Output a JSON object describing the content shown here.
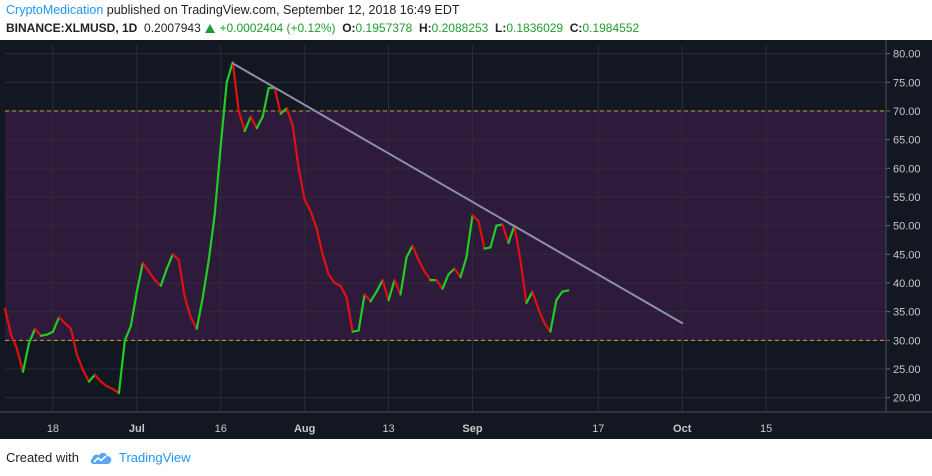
{
  "header": {
    "author": "CryptoMedication",
    "published_text": "published on TradingView.com, September 12, 2018 16:49 EDT",
    "symbol": "BINANCE:XLMUSD, 1D",
    "last": "0.2007943",
    "change": "+0.0002404 (+0.12%)",
    "o_label": "O:",
    "o_value": "0.1957378",
    "h_label": "H:",
    "h_value": "0.2088253",
    "l_label": "L:",
    "l_value": "0.1836029",
    "c_label": "C:",
    "c_value": "0.1984552"
  },
  "footer": {
    "created_with": "Created with",
    "brand": "TradingView",
    "logo_icon": "tradingview-cloud-icon"
  },
  "colors": {
    "background": "#131722",
    "grid": "#2a2e39",
    "band": "#2e1a3a",
    "band_line": "#c8a23a",
    "up": "#22cc22",
    "down": "#e01010",
    "trendline": "#8c90b0",
    "axis_text": "#c8c8c8"
  },
  "chart_data": {
    "type": "line",
    "title": "",
    "xlabel": "",
    "ylabel": "",
    "ylim": [
      17.5,
      81.5
    ],
    "y_ticks": [
      "80.00",
      "75.00",
      "70.00",
      "65.00",
      "60.00",
      "55.00",
      "50.00",
      "45.00",
      "40.00",
      "35.00",
      "30.00",
      "25.00",
      "20.00"
    ],
    "x_tick_labels": [
      "18",
      "Jul",
      "16",
      "Aug",
      "13",
      "Sep",
      "17",
      "Oct",
      "15"
    ],
    "x_tick_dates": [
      "2018-06-18",
      "2018-07-02",
      "2018-07-16",
      "2018-07-30",
      "2018-08-13",
      "2018-08-27",
      "2018-09-17",
      "2018-10-01",
      "2018-10-15"
    ],
    "xlim": [
      "2018-06-10",
      "2018-11-04"
    ],
    "grid": true,
    "band": {
      "upper": 70,
      "lower": 30
    },
    "series": [
      {
        "color_rule": "green when rising, red when falling",
        "x": [
          "2018-06-10",
          "2018-06-11",
          "2018-06-12",
          "2018-06-13",
          "2018-06-14",
          "2018-06-15",
          "2018-06-16",
          "2018-06-17",
          "2018-06-18",
          "2018-06-19",
          "2018-06-20",
          "2018-06-21",
          "2018-06-22",
          "2018-06-23",
          "2018-06-24",
          "2018-06-25",
          "2018-06-26",
          "2018-06-27",
          "2018-06-28",
          "2018-06-29",
          "2018-06-30",
          "2018-07-01",
          "2018-07-02",
          "2018-07-03",
          "2018-07-04",
          "2018-07-05",
          "2018-07-06",
          "2018-07-07",
          "2018-07-08",
          "2018-07-09",
          "2018-07-10",
          "2018-07-11",
          "2018-07-12",
          "2018-07-13",
          "2018-07-14",
          "2018-07-15",
          "2018-07-16",
          "2018-07-17",
          "2018-07-18",
          "2018-07-19",
          "2018-07-20",
          "2018-07-21",
          "2018-07-22",
          "2018-07-23",
          "2018-07-24",
          "2018-07-25",
          "2018-07-26",
          "2018-07-27",
          "2018-07-28",
          "2018-07-29",
          "2018-07-30",
          "2018-07-31",
          "2018-08-01",
          "2018-08-02",
          "2018-08-03",
          "2018-08-04",
          "2018-08-05",
          "2018-08-06",
          "2018-08-07",
          "2018-08-08",
          "2018-08-09",
          "2018-08-10",
          "2018-08-11",
          "2018-08-12",
          "2018-08-13",
          "2018-08-14",
          "2018-08-15",
          "2018-08-16",
          "2018-08-17",
          "2018-08-18",
          "2018-08-19",
          "2018-08-20",
          "2018-08-21",
          "2018-08-22",
          "2018-08-23",
          "2018-08-24",
          "2018-08-25",
          "2018-08-26",
          "2018-08-27",
          "2018-08-28",
          "2018-08-29",
          "2018-08-30",
          "2018-08-31",
          "2018-09-01",
          "2018-09-02",
          "2018-09-03",
          "2018-09-04",
          "2018-09-05",
          "2018-09-06",
          "2018-09-07",
          "2018-09-08",
          "2018-09-09",
          "2018-09-10",
          "2018-09-11",
          "2018-09-12"
        ],
        "values": [
          35.5,
          31.0,
          28.5,
          24.5,
          29.5,
          32.0,
          30.8,
          31.0,
          31.5,
          34.0,
          33.0,
          32.0,
          27.5,
          24.8,
          22.8,
          24.0,
          22.8,
          22.0,
          21.5,
          20.8,
          30.0,
          32.5,
          38.5,
          43.5,
          42.0,
          40.5,
          39.5,
          42.5,
          45.0,
          44.0,
          37.5,
          34.0,
          32.0,
          37.5,
          44.0,
          52.0,
          64.0,
          75.0,
          78.5,
          70.0,
          66.5,
          69.0,
          67.0,
          69.0,
          74.0,
          74.0,
          69.5,
          70.5,
          67.5,
          60.0,
          54.5,
          52.5,
          49.5,
          45.0,
          41.5,
          40.0,
          39.5,
          37.5,
          31.5,
          31.7,
          38.0,
          36.8,
          38.5,
          40.5,
          37.0,
          40.5,
          38.0,
          44.5,
          46.5,
          44.0,
          42.0,
          40.5,
          40.5,
          39.0,
          41.5,
          42.5,
          41.0,
          44.5,
          51.8,
          50.8,
          46.0,
          46.2,
          50.0,
          50.2,
          47.0,
          50.0,
          44.0,
          36.5,
          38.5,
          35.5,
          33.0,
          31.5,
          37.0,
          38.5,
          38.7
        ]
      }
    ],
    "trendline": {
      "x": [
        "2018-07-18",
        "2018-10-01"
      ],
      "y": [
        78.3,
        33.0
      ]
    }
  }
}
